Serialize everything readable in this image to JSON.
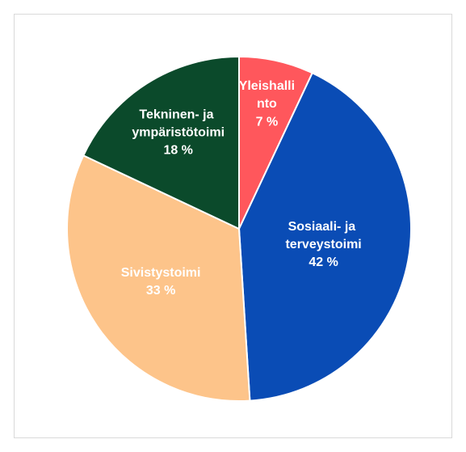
{
  "chart_data": {
    "type": "pie",
    "categories": [
      "Yleishallinto",
      "Sosiaali- ja terveystoimi",
      "Sivistystoimi",
      "Tekninen- ja ympäristötoimi"
    ],
    "values": [
      7,
      42,
      33,
      18
    ],
    "value_labels": [
      "7 %",
      "42 %",
      "33 %",
      "18 %"
    ],
    "colors": [
      "#ff575c",
      "#0a4cb5",
      "#fdc48a",
      "#0b4a2b"
    ]
  }
}
